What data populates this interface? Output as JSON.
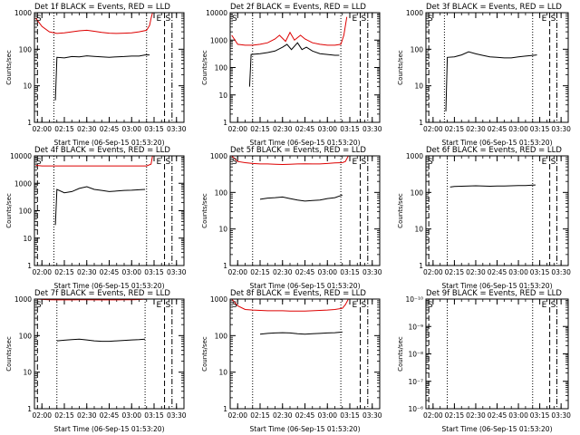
{
  "xtick_labels": [
    "02:00",
    "02:15",
    "02:30",
    "02:45",
    "03:00",
    "03:15",
    "03:30"
  ],
  "xlabel": "Start Time (06-Sep-15 01:53:20)",
  "ylabel": "Counts/sec",
  "colors": {
    "events": "#000000",
    "lld": "#dd0000",
    "axes": "#000000"
  },
  "markers": {
    "start": "S",
    "end": "E"
  },
  "chart_data": [
    {
      "type": "line",
      "title": "Det 1f BLACK = Events, RED = LLD",
      "xlim": [
        "01:55",
        "03:35"
      ],
      "ylim": [
        1,
        1000
      ],
      "yscale": "log",
      "yticks": [
        "1",
        "10",
        "100",
        "1000"
      ],
      "vlines": {
        "dashed": [
          "01:57",
          "03:22"
        ],
        "dotted": [
          "02:08",
          "03:10"
        ],
        "dashdot": [
          "03:27"
        ]
      },
      "series": [
        {
          "x": [
            "02:09",
            "02:10",
            "02:15",
            "02:20",
            "02:25",
            "02:30",
            "02:35",
            "02:40",
            "02:45",
            "02:50",
            "02:55",
            "03:00",
            "03:05",
            "03:09",
            "03:10",
            "03:12"
          ],
          "values": [
            4,
            60,
            58,
            63,
            62,
            66,
            64,
            62,
            60,
            62,
            63,
            65,
            65,
            70,
            70,
            70
          ]
        },
        {
          "x": [
            "01:56",
            "02:00",
            "02:05",
            "02:10",
            "02:15",
            "02:20",
            "02:25",
            "02:30",
            "02:35",
            "02:40",
            "02:45",
            "02:50",
            "02:55",
            "03:00",
            "03:05",
            "03:10",
            "03:12",
            "03:13",
            "03:14",
            "03:15"
          ],
          "values": [
            700,
            420,
            300,
            270,
            280,
            300,
            320,
            330,
            310,
            290,
            275,
            270,
            275,
            280,
            300,
            330,
            450,
            700,
            1000,
            1000
          ]
        }
      ]
    },
    {
      "type": "line",
      "title": "Det 2f BLACK = Events, RED = LLD",
      "xlim": [
        "01:55",
        "03:35"
      ],
      "ylim": [
        1,
        10000
      ],
      "yscale": "log",
      "yticks": [
        "1",
        "10",
        "100",
        "1000",
        "10000"
      ],
      "vlines": {
        "dashed": [
          "03:22"
        ],
        "dotted": [
          "02:10",
          "03:09"
        ],
        "dashdot": [
          "03:27"
        ]
      },
      "series": [
        {
          "x": [
            "02:08",
            "02:09",
            "02:15",
            "02:20",
            "02:25",
            "02:30",
            "02:33",
            "02:36",
            "02:40",
            "02:43",
            "02:46",
            "02:50",
            "02:55",
            "03:00",
            "03:05",
            "03:08"
          ],
          "values": [
            20,
            300,
            320,
            350,
            400,
            550,
            700,
            450,
            800,
            450,
            550,
            400,
            320,
            300,
            280,
            280
          ]
        },
        {
          "x": [
            "01:56",
            "02:00",
            "02:05",
            "02:10",
            "02:15",
            "02:20",
            "02:25",
            "02:28",
            "02:32",
            "02:35",
            "02:38",
            "02:42",
            "02:45",
            "02:50",
            "02:55",
            "03:00",
            "03:05",
            "03:09",
            "03:11",
            "03:13"
          ],
          "values": [
            1500,
            700,
            650,
            650,
            700,
            800,
            1100,
            1500,
            900,
            1900,
            1000,
            1500,
            1100,
            800,
            700,
            650,
            650,
            700,
            1500,
            7000
          ]
        }
      ]
    },
    {
      "type": "line",
      "title": "Det 3f BLACK = Events, RED = LLD",
      "xlim": [
        "01:55",
        "03:35"
      ],
      "ylim": [
        1,
        1000
      ],
      "yscale": "log",
      "yticks": [
        "1",
        "10",
        "100",
        "1000"
      ],
      "vlines": {
        "dashed": [
          "01:57",
          "03:22"
        ],
        "dotted": [
          "02:08",
          "03:10"
        ],
        "dashdot": [
          "03:27"
        ]
      },
      "series": [
        {
          "x": [
            "02:09",
            "02:10",
            "02:15",
            "02:20",
            "02:25",
            "02:30",
            "02:35",
            "02:40",
            "02:45",
            "02:50",
            "02:55",
            "03:00",
            "03:05",
            "03:10",
            "03:13"
          ],
          "values": [
            2,
            60,
            62,
            70,
            85,
            75,
            68,
            62,
            60,
            58,
            58,
            62,
            65,
            68,
            70
          ]
        }
      ]
    },
    {
      "type": "line",
      "title": "Det 4f BLACK = Events, RED = LLD",
      "xlim": [
        "01:55",
        "03:35"
      ],
      "ylim": [
        1,
        10000
      ],
      "yscale": "log",
      "yticks": [
        "1",
        "10",
        "100",
        "1000",
        "10000"
      ],
      "vlines": {
        "dashed": [
          "01:57",
          "03:22"
        ],
        "dotted": [
          "02:08",
          "03:10"
        ],
        "dashdot": [
          "03:27"
        ]
      },
      "series": [
        {
          "x": [
            "02:09",
            "02:10",
            "02:15",
            "02:20",
            "02:25",
            "02:30",
            "02:35",
            "02:40",
            "02:45",
            "02:50",
            "02:55",
            "03:00",
            "03:05",
            "03:09"
          ],
          "values": [
            30,
            600,
            450,
            500,
            650,
            750,
            600,
            550,
            500,
            520,
            550,
            560,
            580,
            600
          ]
        },
        {
          "x": [
            "01:56",
            "02:00",
            "02:05",
            "02:10",
            "02:15",
            "02:20",
            "02:25",
            "02:30",
            "02:35",
            "02:40",
            "02:45",
            "02:50",
            "02:55",
            "03:00",
            "03:05",
            "03:10",
            "03:13",
            "03:14"
          ],
          "values": [
            4500,
            4300,
            4300,
            4300,
            4300,
            4300,
            4300,
            4300,
            4300,
            4300,
            4300,
            4300,
            4300,
            4300,
            4300,
            4300,
            5000,
            10000
          ]
        }
      ]
    },
    {
      "type": "line",
      "title": "Det 5f BLACK = Events, RED = LLD",
      "xlim": [
        "01:55",
        "03:35"
      ],
      "ylim": [
        1,
        1000
      ],
      "yscale": "log",
      "yticks": [
        "1",
        "10",
        "100",
        "1000"
      ],
      "vlines": {
        "dashed": [
          "03:22"
        ],
        "dotted": [
          "02:10",
          "03:09"
        ],
        "dashdot": [
          "03:27"
        ]
      },
      "series": [
        {
          "x": [
            "02:15",
            "02:20",
            "02:25",
            "02:30",
            "02:35",
            "02:40",
            "02:45",
            "02:50",
            "02:55",
            "03:00",
            "03:05",
            "03:10"
          ],
          "values": [
            65,
            70,
            72,
            75,
            68,
            62,
            58,
            60,
            62,
            68,
            72,
            85
          ]
        },
        {
          "x": [
            "01:56",
            "02:00",
            "02:05",
            "02:10",
            "02:15",
            "02:20",
            "02:25",
            "02:30",
            "02:35",
            "02:40",
            "02:45",
            "02:50",
            "02:55",
            "03:00",
            "03:05",
            "03:10",
            "03:12",
            "03:14"
          ],
          "values": [
            1000,
            700,
            650,
            620,
            600,
            600,
            590,
            580,
            590,
            600,
            610,
            600,
            600,
            620,
            640,
            650,
            700,
            1000
          ]
        }
      ]
    },
    {
      "type": "line",
      "title": "Det 6f BLACK = Events, RED = LLD",
      "xlim": [
        "01:55",
        "03:35"
      ],
      "ylim": [
        1,
        1000
      ],
      "yscale": "log",
      "yticks": [
        "1",
        "10",
        "100",
        "1000"
      ],
      "vlines": {
        "dashed": [
          "01:57",
          "03:22"
        ],
        "dotted": [
          "02:10",
          "03:10"
        ],
        "dashdot": [
          "03:27"
        ]
      },
      "series": [
        {
          "x": [
            "02:12",
            "02:15",
            "02:20",
            "02:25",
            "02:30",
            "02:35",
            "02:40",
            "02:45",
            "02:50",
            "02:55",
            "03:00",
            "03:05",
            "03:10",
            "03:12"
          ],
          "values": [
            140,
            145,
            148,
            150,
            152,
            150,
            148,
            150,
            150,
            152,
            155,
            155,
            158,
            160
          ]
        }
      ]
    },
    {
      "type": "line",
      "title": "Det 7f BLACK = Events, RED = LLD",
      "xlim": [
        "01:55",
        "03:35"
      ],
      "ylim": [
        1,
        1000
      ],
      "yscale": "log",
      "yticks": [
        "1",
        "10",
        "100",
        "1000"
      ],
      "vlines": {
        "dashed": [
          "01:57",
          "03:22"
        ],
        "dotted": [
          "02:10",
          "03:09"
        ],
        "dashdot": [
          "03:27"
        ]
      },
      "series": [
        {
          "x": [
            "02:10",
            "02:15",
            "02:20",
            "02:25",
            "02:30",
            "02:35",
            "02:40",
            "02:45",
            "02:50",
            "02:55",
            "03:00",
            "03:05",
            "03:09"
          ],
          "values": [
            72,
            75,
            78,
            80,
            76,
            72,
            70,
            70,
            72,
            74,
            76,
            78,
            80
          ]
        },
        {
          "x": [
            "01:56",
            "02:00",
            "02:05",
            "02:10",
            "02:15",
            "02:20",
            "02:25",
            "02:30",
            "02:35",
            "02:40",
            "02:45",
            "02:50",
            "02:55",
            "03:00",
            "03:05",
            "03:10",
            "03:13"
          ],
          "values": [
            1000,
            980,
            960,
            950,
            950,
            950,
            960,
            960,
            950,
            950,
            950,
            950,
            955,
            960,
            970,
            1000,
            1000
          ]
        }
      ]
    },
    {
      "type": "line",
      "title": "Det 8f BLACK = Events, RED = LLD",
      "xlim": [
        "01:55",
        "03:35"
      ],
      "ylim": [
        1,
        1000
      ],
      "yscale": "log",
      "yticks": [
        "1",
        "10",
        "100",
        "1000"
      ],
      "vlines": {
        "dashed": [
          "03:22"
        ],
        "dotted": [
          "02:10",
          "03:09"
        ],
        "dashdot": [
          "03:27"
        ]
      },
      "series": [
        {
          "x": [
            "02:15",
            "02:20",
            "02:25",
            "02:30",
            "02:35",
            "02:40",
            "02:45",
            "02:50",
            "02:55",
            "03:00",
            "03:05",
            "03:10"
          ],
          "values": [
            110,
            115,
            118,
            120,
            118,
            112,
            110,
            112,
            115,
            118,
            120,
            125
          ]
        },
        {
          "x": [
            "01:56",
            "02:00",
            "02:05",
            "02:10",
            "02:15",
            "02:20",
            "02:25",
            "02:30",
            "02:35",
            "02:40",
            "02:45",
            "02:50",
            "02:55",
            "03:00",
            "03:05",
            "03:10",
            "03:12",
            "03:14"
          ],
          "values": [
            1000,
            650,
            520,
            500,
            490,
            480,
            480,
            480,
            470,
            470,
            470,
            480,
            490,
            500,
            520,
            560,
            700,
            1000
          ]
        }
      ]
    },
    {
      "type": "line",
      "title": "Det 9f BLACK = Events, RED = LLD",
      "xlim": [
        "01:55",
        "03:35"
      ],
      "ylim": [
        1e-06,
        1e-10
      ],
      "yscale": "log",
      "yticks": [
        "10⁻⁶",
        "10⁻⁷",
        "10⁻⁸",
        "10⁻⁹",
        "10⁻¹⁰"
      ],
      "vlines": {
        "dashed": [
          "01:57",
          "03:22"
        ],
        "dotted": [
          "02:10",
          "03:10"
        ],
        "dashdot": [
          "03:27"
        ]
      },
      "series": []
    }
  ]
}
